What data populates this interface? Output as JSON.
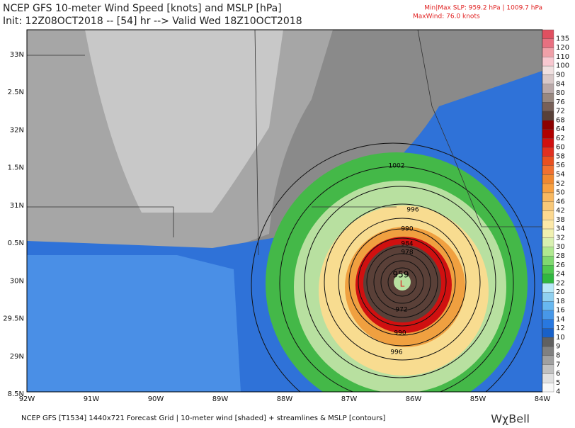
{
  "header": {
    "title": "NCEP GFS 10-meter Wind Speed [knots] and MSLP [hPa]",
    "subtitle": "Init: 12Z08OCT2018 -- [54] hr --> Valid Wed 18Z10OCT2018",
    "slp_range": "Min|Max SLP: 959.2 hPa | 1009.7 hPa",
    "max_wind": "MaxWind: 76.0 knots"
  },
  "map": {
    "latitude_labels": [
      "33N",
      "2.5N",
      "32N",
      "1.5N",
      "31N",
      "0.5N",
      "30N",
      "29.5N",
      "29N",
      "8.5N"
    ],
    "longitude_labels": [
      "92W",
      "91W",
      "90W",
      "89W",
      "88W",
      "87W",
      "86W",
      "85W",
      "84W"
    ],
    "isobar_labels": [
      "1002",
      "996",
      "990",
      "984",
      "978",
      "959",
      "972",
      "990",
      "996"
    ],
    "low_marker": "L"
  },
  "colorbar": [
    {
      "value": 135,
      "color": "#e05060"
    },
    {
      "value": 120,
      "color": "#e87080"
    },
    {
      "value": 110,
      "color": "#f0a0a8"
    },
    {
      "value": 100,
      "color": "#f8c8d0"
    },
    {
      "value": 90,
      "color": "#f0e0e0"
    },
    {
      "value": 84,
      "color": "#d8c8c8"
    },
    {
      "value": 80,
      "color": "#b8a8a8"
    },
    {
      "value": 76,
      "color": "#988880"
    },
    {
      "value": 72,
      "color": "#786058"
    },
    {
      "value": 68,
      "color": "#584038"
    },
    {
      "value": 64,
      "color": "#8b0000"
    },
    {
      "value": 62,
      "color": "#b00000"
    },
    {
      "value": 60,
      "color": "#d01010"
    },
    {
      "value": 58,
      "color": "#e03020"
    },
    {
      "value": 56,
      "color": "#e85020"
    },
    {
      "value": 54,
      "color": "#f07030"
    },
    {
      "value": 52,
      "color": "#f08830"
    },
    {
      "value": 50,
      "color": "#f8a040"
    },
    {
      "value": 46,
      "color": "#f8b860"
    },
    {
      "value": 42,
      "color": "#f8c878"
    },
    {
      "value": 38,
      "color": "#fcd890"
    },
    {
      "value": 34,
      "color": "#fce8a8"
    },
    {
      "value": 32,
      "color": "#f0f0b0"
    },
    {
      "value": 30,
      "color": "#d8f0b0"
    },
    {
      "value": 28,
      "color": "#b0e890"
    },
    {
      "value": 26,
      "color": "#80d870"
    },
    {
      "value": 24,
      "color": "#50c850"
    },
    {
      "value": 22,
      "color": "#30b840"
    },
    {
      "value": 20,
      "color": "#b8e8f8"
    },
    {
      "value": 18,
      "color": "#90d0f0"
    },
    {
      "value": 16,
      "color": "#68b8f0"
    },
    {
      "value": 14,
      "color": "#4898e8"
    },
    {
      "value": 12,
      "color": "#2878e0"
    },
    {
      "value": 10,
      "color": "#1860c8"
    },
    {
      "value": 9,
      "color": "#606060"
    },
    {
      "value": 8,
      "color": "#808080"
    },
    {
      "value": 7,
      "color": "#a0a0a0"
    },
    {
      "value": 6,
      "color": "#c0c0c0"
    },
    {
      "value": 5,
      "color": "#e0e0e0"
    },
    {
      "value": 4,
      "color": "#f8f8f8"
    }
  ],
  "footer": {
    "description": "NCEP GFS [T1534] 1440x721 Forecast Grid | 10-meter wind [shaded] + streamlines & MSLP [contours]",
    "logo": "WχBell"
  }
}
